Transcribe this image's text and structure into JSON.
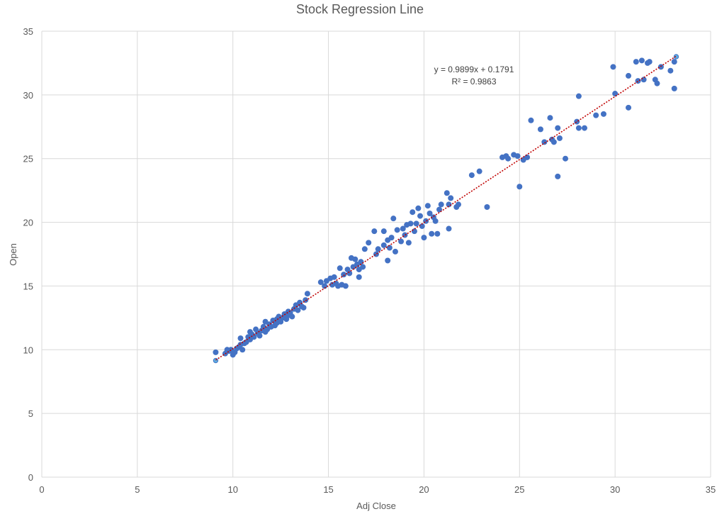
{
  "chart_data": {
    "type": "scatter",
    "title": "Stock Regression Line",
    "xlabel": "Adj Close",
    "ylabel": "Open",
    "xlim": [
      0,
      35
    ],
    "ylim": [
      0,
      35
    ],
    "x_ticks": [
      0,
      5,
      10,
      15,
      20,
      25,
      30,
      35
    ],
    "y_ticks": [
      0,
      5,
      10,
      15,
      20,
      25,
      30,
      35
    ],
    "x_tick_labels": [
      "0",
      "5",
      "10",
      "15",
      "20",
      "25",
      "30",
      "35"
    ],
    "y_tick_labels": [
      "0",
      "5",
      "10",
      "15",
      "20",
      "25",
      "30",
      "35"
    ],
    "grid": true,
    "legend": "none",
    "colors": {
      "points": "#4472C4",
      "highlight_points": "#5DADE2",
      "trendline": "#C00000",
      "grid": "#D9D9D9",
      "text": "#595959"
    },
    "trendline": {
      "equation": "y = 0.9899x + 0.1791",
      "r_squared": "R² = 0.9863",
      "slope": 0.9899,
      "intercept": 0.1791,
      "x_range": [
        9.1,
        33.2
      ],
      "style": "dotted"
    },
    "highlight_points": [
      {
        "x": 9.1,
        "y": 9.15
      },
      {
        "x": 33.2,
        "y": 33.0
      }
    ],
    "points": [
      {
        "x": 9.1,
        "y": 9.8
      },
      {
        "x": 9.6,
        "y": 9.7
      },
      {
        "x": 9.8,
        "y": 9.9
      },
      {
        "x": 9.9,
        "y": 10.0
      },
      {
        "x": 10.0,
        "y": 9.6
      },
      {
        "x": 10.1,
        "y": 9.8
      },
      {
        "x": 10.2,
        "y": 10.1
      },
      {
        "x": 9.7,
        "y": 10.0
      },
      {
        "x": 10.3,
        "y": 10.2
      },
      {
        "x": 10.4,
        "y": 10.4
      },
      {
        "x": 10.5,
        "y": 10.0
      },
      {
        "x": 10.6,
        "y": 10.5
      },
      {
        "x": 10.4,
        "y": 10.9
      },
      {
        "x": 10.7,
        "y": 10.6
      },
      {
        "x": 10.8,
        "y": 11.0
      },
      {
        "x": 10.9,
        "y": 10.8
      },
      {
        "x": 11.0,
        "y": 11.2
      },
      {
        "x": 10.9,
        "y": 11.4
      },
      {
        "x": 11.1,
        "y": 11.0
      },
      {
        "x": 11.2,
        "y": 11.6
      },
      {
        "x": 11.3,
        "y": 11.3
      },
      {
        "x": 11.4,
        "y": 11.1
      },
      {
        "x": 11.5,
        "y": 11.5
      },
      {
        "x": 11.6,
        "y": 11.8
      },
      {
        "x": 11.7,
        "y": 11.4
      },
      {
        "x": 11.7,
        "y": 12.2
      },
      {
        "x": 11.8,
        "y": 11.6
      },
      {
        "x": 11.9,
        "y": 12.0
      },
      {
        "x": 12.0,
        "y": 11.8
      },
      {
        "x": 12.1,
        "y": 12.3
      },
      {
        "x": 12.2,
        "y": 11.9
      },
      {
        "x": 12.3,
        "y": 12.4
      },
      {
        "x": 12.3,
        "y": 12.1
      },
      {
        "x": 12.4,
        "y": 12.6
      },
      {
        "x": 12.5,
        "y": 12.2
      },
      {
        "x": 12.6,
        "y": 12.5
      },
      {
        "x": 12.7,
        "y": 12.8
      },
      {
        "x": 12.8,
        "y": 12.4
      },
      {
        "x": 12.9,
        "y": 12.7
      },
      {
        "x": 12.9,
        "y": 13.0
      },
      {
        "x": 13.0,
        "y": 12.9
      },
      {
        "x": 13.1,
        "y": 12.6
      },
      {
        "x": 13.2,
        "y": 13.2
      },
      {
        "x": 13.3,
        "y": 13.5
      },
      {
        "x": 13.4,
        "y": 13.1
      },
      {
        "x": 13.5,
        "y": 13.7
      },
      {
        "x": 13.6,
        "y": 13.4
      },
      {
        "x": 13.7,
        "y": 13.3
      },
      {
        "x": 13.8,
        "y": 13.9
      },
      {
        "x": 13.9,
        "y": 14.4
      },
      {
        "x": 14.6,
        "y": 15.3
      },
      {
        "x": 14.8,
        "y": 15.0
      },
      {
        "x": 14.9,
        "y": 15.4
      },
      {
        "x": 15.1,
        "y": 15.6
      },
      {
        "x": 15.2,
        "y": 15.1
      },
      {
        "x": 15.3,
        "y": 15.7
      },
      {
        "x": 15.4,
        "y": 15.2
      },
      {
        "x": 15.5,
        "y": 15.0
      },
      {
        "x": 15.6,
        "y": 16.4
      },
      {
        "x": 15.7,
        "y": 15.1
      },
      {
        "x": 15.8,
        "y": 15.9
      },
      {
        "x": 15.9,
        "y": 15.0
      },
      {
        "x": 16.0,
        "y": 16.3
      },
      {
        "x": 16.1,
        "y": 16.0
      },
      {
        "x": 16.2,
        "y": 17.2
      },
      {
        "x": 16.3,
        "y": 16.5
      },
      {
        "x": 16.4,
        "y": 17.1
      },
      {
        "x": 16.5,
        "y": 16.7
      },
      {
        "x": 16.6,
        "y": 15.7
      },
      {
        "x": 16.6,
        "y": 16.3
      },
      {
        "x": 16.7,
        "y": 16.9
      },
      {
        "x": 16.8,
        "y": 16.5
      },
      {
        "x": 16.9,
        "y": 17.9
      },
      {
        "x": 17.1,
        "y": 18.4
      },
      {
        "x": 17.4,
        "y": 19.3
      },
      {
        "x": 17.5,
        "y": 17.5
      },
      {
        "x": 17.6,
        "y": 17.9
      },
      {
        "x": 17.9,
        "y": 18.2
      },
      {
        "x": 17.9,
        "y": 19.3
      },
      {
        "x": 18.1,
        "y": 17.0
      },
      {
        "x": 18.1,
        "y": 18.6
      },
      {
        "x": 18.2,
        "y": 18.0
      },
      {
        "x": 18.3,
        "y": 18.8
      },
      {
        "x": 18.4,
        "y": 20.3
      },
      {
        "x": 18.5,
        "y": 17.7
      },
      {
        "x": 18.6,
        "y": 19.4
      },
      {
        "x": 18.8,
        "y": 18.5
      },
      {
        "x": 18.9,
        "y": 19.5
      },
      {
        "x": 19.0,
        "y": 19.0
      },
      {
        "x": 19.1,
        "y": 19.8
      },
      {
        "x": 19.2,
        "y": 18.4
      },
      {
        "x": 19.3,
        "y": 19.9
      },
      {
        "x": 19.4,
        "y": 20.8
      },
      {
        "x": 19.5,
        "y": 19.3
      },
      {
        "x": 19.6,
        "y": 19.9
      },
      {
        "x": 19.7,
        "y": 21.1
      },
      {
        "x": 19.8,
        "y": 20.5
      },
      {
        "x": 19.9,
        "y": 19.7
      },
      {
        "x": 20.0,
        "y": 18.8
      },
      {
        "x": 20.1,
        "y": 20.1
      },
      {
        "x": 20.2,
        "y": 21.3
      },
      {
        "x": 20.3,
        "y": 20.7
      },
      {
        "x": 20.4,
        "y": 19.1
      },
      {
        "x": 20.5,
        "y": 20.4
      },
      {
        "x": 20.6,
        "y": 20.1
      },
      {
        "x": 20.7,
        "y": 19.1
      },
      {
        "x": 20.8,
        "y": 21.0
      },
      {
        "x": 20.9,
        "y": 21.4
      },
      {
        "x": 21.2,
        "y": 22.3
      },
      {
        "x": 21.3,
        "y": 21.4
      },
      {
        "x": 21.3,
        "y": 19.5
      },
      {
        "x": 21.4,
        "y": 21.9
      },
      {
        "x": 21.7,
        "y": 21.2
      },
      {
        "x": 21.8,
        "y": 21.4
      },
      {
        "x": 22.5,
        "y": 23.7
      },
      {
        "x": 22.9,
        "y": 24.0
      },
      {
        "x": 23.3,
        "y": 21.2
      },
      {
        "x": 24.1,
        "y": 25.1
      },
      {
        "x": 24.3,
        "y": 25.2
      },
      {
        "x": 24.4,
        "y": 25.0
      },
      {
        "x": 24.7,
        "y": 25.3
      },
      {
        "x": 24.9,
        "y": 25.2
      },
      {
        "x": 25.0,
        "y": 22.8
      },
      {
        "x": 25.2,
        "y": 24.9
      },
      {
        "x": 25.4,
        "y": 25.1
      },
      {
        "x": 25.6,
        "y": 28.0
      },
      {
        "x": 26.1,
        "y": 27.3
      },
      {
        "x": 26.3,
        "y": 26.3
      },
      {
        "x": 26.6,
        "y": 28.2
      },
      {
        "x": 26.7,
        "y": 26.5
      },
      {
        "x": 26.8,
        "y": 26.3
      },
      {
        "x": 27.0,
        "y": 27.4
      },
      {
        "x": 27.0,
        "y": 23.6
      },
      {
        "x": 27.1,
        "y": 26.6
      },
      {
        "x": 27.4,
        "y": 25.0
      },
      {
        "x": 28.0,
        "y": 27.9
      },
      {
        "x": 28.1,
        "y": 29.9
      },
      {
        "x": 28.1,
        "y": 27.4
      },
      {
        "x": 28.4,
        "y": 27.4
      },
      {
        "x": 29.0,
        "y": 28.4
      },
      {
        "x": 29.4,
        "y": 28.5
      },
      {
        "x": 29.9,
        "y": 32.2
      },
      {
        "x": 30.0,
        "y": 30.1
      },
      {
        "x": 30.7,
        "y": 31.5
      },
      {
        "x": 30.7,
        "y": 29.0
      },
      {
        "x": 31.1,
        "y": 32.6
      },
      {
        "x": 31.2,
        "y": 31.1
      },
      {
        "x": 31.4,
        "y": 32.7
      },
      {
        "x": 31.5,
        "y": 31.2
      },
      {
        "x": 31.7,
        "y": 32.5
      },
      {
        "x": 31.8,
        "y": 32.6
      },
      {
        "x": 32.1,
        "y": 31.2
      },
      {
        "x": 32.2,
        "y": 30.9
      },
      {
        "x": 32.4,
        "y": 32.2
      },
      {
        "x": 32.9,
        "y": 31.9
      },
      {
        "x": 33.1,
        "y": 32.6
      },
      {
        "x": 33.1,
        "y": 30.5
      }
    ]
  }
}
